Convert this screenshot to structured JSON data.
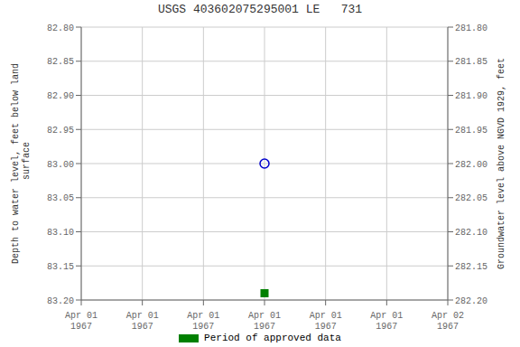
{
  "chart_data": {
    "type": "scatter",
    "title": "USGS 403602075295001 LE   731",
    "ylabel": "Depth to water level, feet below land\n surface",
    "y2label": "Groundwater level above NGVD 1929, feet",
    "categories": [
      "Apr 01\n1967",
      "Apr 01\n1967",
      "Apr 01\n1967",
      "Apr 01\n1967",
      "Apr 01\n1967",
      "Apr 01\n1967",
      "Apr 02\n1967"
    ],
    "series": [
      {
        "color": "#0000cc",
        "marker": "circle",
        "values": [
          null,
          null,
          null,
          83.0,
          null,
          null,
          null
        ]
      },
      {
        "name": "Period of approved data",
        "color": "#008000",
        "marker": "square",
        "values": [
          null,
          null,
          null,
          83.19,
          null,
          null,
          null
        ]
      }
    ],
    "ylim": [
      83.2,
      82.8
    ],
    "yticks": [
      {
        "value": 82.8,
        "label": "82.80"
      },
      {
        "value": 82.85,
        "label": "82.85"
      },
      {
        "value": 82.9,
        "label": "82.90"
      },
      {
        "value": 82.95,
        "label": "82.95"
      },
      {
        "value": 83.0,
        "label": "83.00"
      },
      {
        "value": 83.05,
        "label": "83.05"
      },
      {
        "value": 83.1,
        "label": "83.10"
      },
      {
        "value": 83.15,
        "label": "83.15"
      },
      {
        "value": 83.2,
        "label": "83.20"
      }
    ],
    "y2lim": [
      282.2,
      281.8
    ],
    "y2ticks": [
      {
        "value": 282.2,
        "label": "282.20"
      },
      {
        "value": 282.15,
        "label": "282.15"
      },
      {
        "value": 282.1,
        "label": "282.10"
      },
      {
        "value": 282.05,
        "label": "282.05"
      },
      {
        "value": 282.0,
        "label": "282.00"
      },
      {
        "value": 281.95,
        "label": "281.95"
      },
      {
        "value": 281.9,
        "label": "281.90"
      },
      {
        "value": 281.85,
        "label": "281.85"
      },
      {
        "value": 281.8,
        "label": "281.80"
      }
    ],
    "grid": true,
    "legend": "bottom"
  }
}
